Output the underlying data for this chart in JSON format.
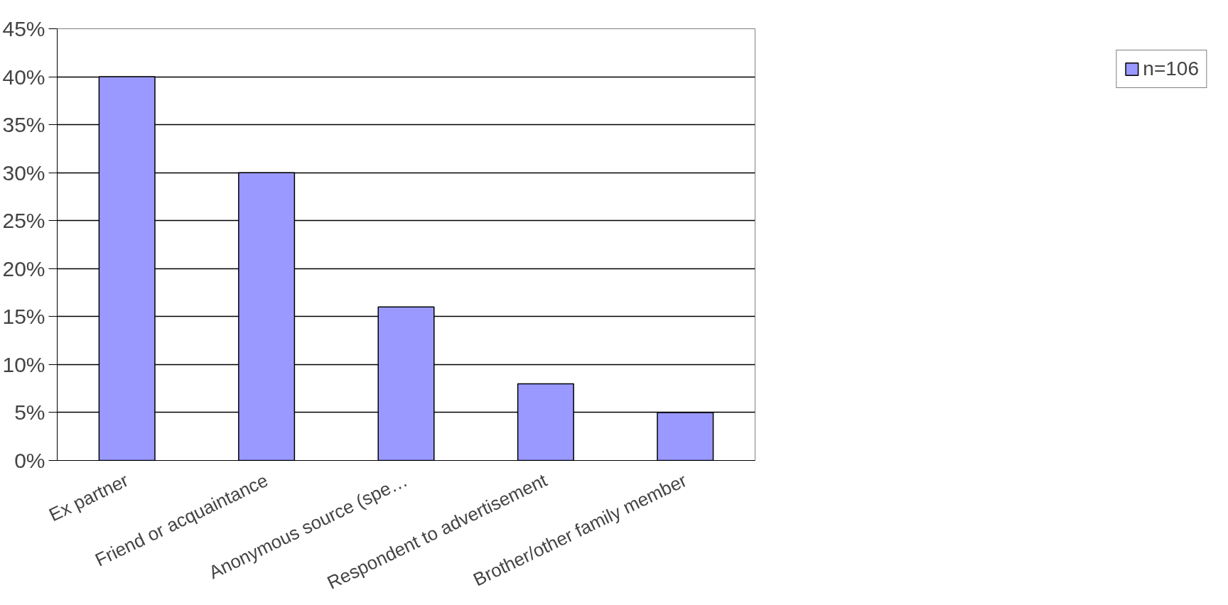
{
  "chart_data": {
    "type": "bar",
    "categories": [
      "Ex partner",
      "Friend or acquaintance",
      "Anonymous source (spe…",
      "Respondent to advertisement",
      "Brother/other family member"
    ],
    "series": [
      {
        "name": "n=106",
        "color": "#9999ff",
        "values": [
          40,
          30,
          16,
          8,
          5
        ]
      }
    ],
    "ylim": [
      0,
      45
    ],
    "yticks": [
      {
        "value": 0,
        "label": "0%"
      },
      {
        "value": 5,
        "label": "5%"
      },
      {
        "value": 10,
        "label": "10%"
      },
      {
        "value": 15,
        "label": "15%"
      },
      {
        "value": 20,
        "label": "20%"
      },
      {
        "value": 25,
        "label": "25%"
      },
      {
        "value": 30,
        "label": "30%"
      },
      {
        "value": 35,
        "label": "35%"
      },
      {
        "value": 40,
        "label": "40%"
      },
      {
        "value": 45,
        "label": "45%"
      }
    ],
    "grid": "y",
    "legend": "right"
  }
}
